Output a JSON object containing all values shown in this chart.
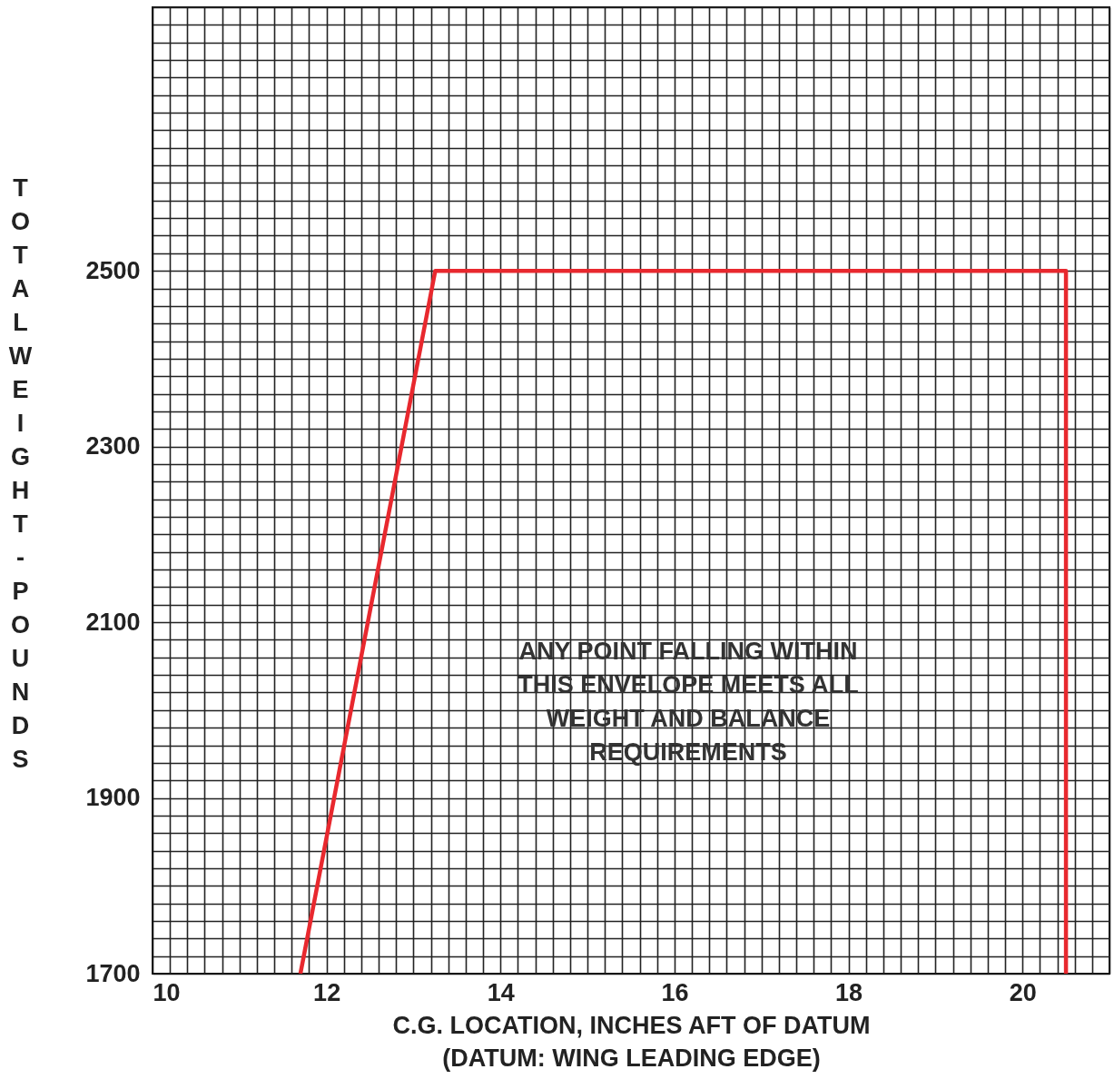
{
  "chart_data": {
    "type": "line",
    "xlabel": "C.G. LOCATION, INCHES AFT OF DATUM\n(DATUM: WING LEADING EDGE)",
    "ylabel": "TOTAL WEIGHT - POUNDS",
    "annotations": [
      "ANY POINT FALLING WITHIN\nTHIS ENVELOPE MEETS ALL\nWEIGHT AND BALANCE\nREQUIREMENTS"
    ],
    "x": [
      11.7,
      13.25,
      20.5,
      20.5
    ],
    "series": [
      {
        "color": "#e8282e",
        "values": [
          1700,
          2500,
          2500,
          1700
        ]
      }
    ],
    "xlim": [
      10,
      21
    ],
    "ylim": [
      1700,
      2800
    ],
    "xticks": [
      10,
      {
        "value": 10.2,
        "label": null
      },
      {
        "value": 10.4,
        "label": null
      },
      {
        "value": 10.6,
        "label": null
      },
      {
        "value": 10.8,
        "label": null
      },
      {
        "value": 11,
        "label": null
      },
      {
        "value": 11.2,
        "label": null
      },
      {
        "value": 11.4,
        "label": null
      },
      {
        "value": 11.6,
        "label": null
      },
      {
        "value": 11.8,
        "label": null
      },
      12,
      {
        "value": 12.2,
        "label": null
      },
      {
        "value": 12.4,
        "label": null
      },
      {
        "value": 12.6,
        "label": null
      },
      {
        "value": 12.8,
        "label": null
      },
      {
        "value": 13,
        "label": null
      },
      {
        "value": 13.2,
        "label": null
      },
      {
        "value": 13.4,
        "label": null
      },
      {
        "value": 13.6,
        "label": null
      },
      {
        "value": 13.8,
        "label": null
      },
      14,
      {
        "value": 14.2,
        "label": null
      },
      {
        "value": 14.4,
        "label": null
      },
      {
        "value": 14.6,
        "label": null
      },
      {
        "value": 14.8,
        "label": null
      },
      {
        "value": 15,
        "label": null
      },
      {
        "value": 15.2,
        "label": null
      },
      {
        "value": 15.4,
        "label": null
      },
      {
        "value": 15.6,
        "label": null
      },
      {
        "value": 15.8,
        "label": null
      },
      16,
      {
        "value": 16.2,
        "label": null
      },
      {
        "value": 16.4,
        "label": null
      },
      {
        "value": 16.6,
        "label": null
      },
      {
        "value": 16.8,
        "label": null
      },
      {
        "value": 17,
        "label": null
      },
      {
        "value": 17.2,
        "label": null
      },
      {
        "value": 17.4,
        "label": null
      },
      {
        "value": 17.6,
        "label": null
      },
      {
        "value": 17.8,
        "label": null
      },
      18,
      {
        "value": 18.2,
        "label": null
      },
      {
        "value": 18.4,
        "label": null
      },
      {
        "value": 18.6,
        "label": null
      },
      {
        "value": 18.8,
        "label": null
      },
      {
        "value": 19,
        "label": null
      },
      {
        "value": 19.2,
        "label": null
      },
      {
        "value": 19.4,
        "label": null
      },
      {
        "value": 19.6,
        "label": null
      },
      {
        "value": 19.8,
        "label": null
      },
      20,
      {
        "value": 20.2,
        "label": null
      },
      {
        "value": 20.4,
        "label": null
      },
      {
        "value": 20.6,
        "label": null
      },
      {
        "value": 20.8,
        "label": null
      },
      {
        "value": 21,
        "label": null
      }
    ],
    "yticks": [
      1700,
      {
        "value": 1720,
        "label": null
      },
      {
        "value": 1740,
        "label": null
      },
      {
        "value": 1760,
        "label": null
      },
      {
        "value": 1780,
        "label": null
      },
      {
        "value": 1800,
        "label": null
      },
      {
        "value": 1820,
        "label": null
      },
      {
        "value": 1840,
        "label": null
      },
      {
        "value": 1860,
        "label": null
      },
      {
        "value": 1880,
        "label": null
      },
      1900,
      {
        "value": 1920,
        "label": null
      },
      {
        "value": 1940,
        "label": null
      },
      {
        "value": 1960,
        "label": null
      },
      {
        "value": 1980,
        "label": null
      },
      {
        "value": 2000,
        "label": null
      },
      {
        "value": 2020,
        "label": null
      },
      {
        "value": 2040,
        "label": null
      },
      {
        "value": 2060,
        "label": null
      },
      {
        "value": 2080,
        "label": null
      },
      2100,
      {
        "value": 2120,
        "label": null
      },
      {
        "value": 2140,
        "label": null
      },
      {
        "value": 2160,
        "label": null
      },
      {
        "value": 2180,
        "label": null
      },
      {
        "value": 2200,
        "label": null
      },
      {
        "value": 2220,
        "label": null
      },
      {
        "value": 2240,
        "label": null
      },
      {
        "value": 2260,
        "label": null
      },
      {
        "value": 2280,
        "label": null
      },
      2300,
      {
        "value": 2320,
        "label": null
      },
      {
        "value": 2340,
        "label": null
      },
      {
        "value": 2360,
        "label": null
      },
      {
        "value": 2380,
        "label": null
      },
      {
        "value": 2400,
        "label": null
      },
      {
        "value": 2420,
        "label": null
      },
      {
        "value": 2440,
        "label": null
      },
      {
        "value": 2460,
        "label": null
      },
      {
        "value": 2480,
        "label": null
      },
      2500,
      {
        "value": 2520,
        "label": null
      },
      {
        "value": 2540,
        "label": null
      },
      {
        "value": 2560,
        "label": null
      },
      {
        "value": 2580,
        "label": null
      },
      {
        "value": 2600,
        "label": null
      },
      {
        "value": 2620,
        "label": null
      },
      {
        "value": 2640,
        "label": null
      },
      {
        "value": 2660,
        "label": null
      },
      {
        "value": 2680,
        "label": null
      },
      {
        "value": 2700,
        "label": null
      },
      {
        "value": 2720,
        "label": null
      },
      {
        "value": 2740,
        "label": null
      },
      {
        "value": 2760,
        "label": null
      },
      {
        "value": 2780,
        "label": null
      },
      {
        "value": 2800,
        "label": null
      }
    ],
    "grid": true
  }
}
